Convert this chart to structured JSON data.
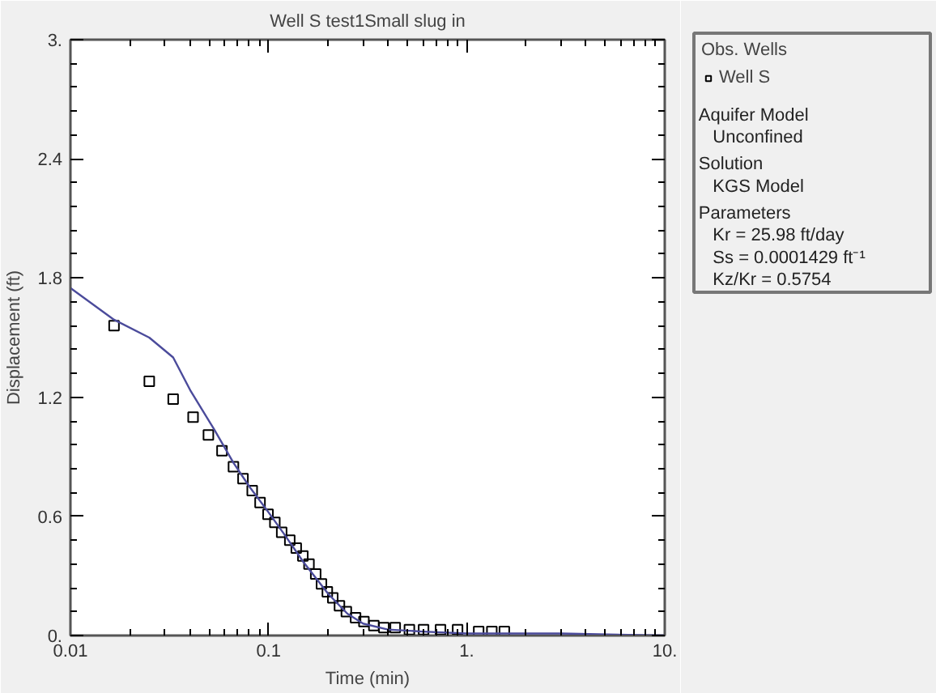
{
  "chart_data": {
    "type": "scatter",
    "title": "Well S test1Small slug in",
    "xlabel": "Time (min)",
    "ylabel": "Displacement (ft)",
    "log": "x",
    "xlim": [
      0.01,
      10
    ],
    "ylim": [
      0,
      3
    ],
    "xticks": [
      0.01,
      0.1,
      {
        "value": 1,
        "label": "1."
      },
      {
        "value": 10,
        "label": "10."
      }
    ],
    "yticks": [
      {
        "value": 0,
        "label": "0."
      },
      0.6,
      1.2,
      1.8,
      2.4,
      {
        "value": 3,
        "label": "3."
      }
    ],
    "grid": false,
    "legend": "right",
    "legend_title": "Obs. Wells",
    "annotations": [
      "Aquifer Model",
      "Unconfined",
      "Solution",
      "KGS Model",
      "Parameters",
      "Kr    = 25.98 ft/day",
      "Ss    = 0.0001429 ft⁻¹",
      "Kz/Kr = 0.5754"
    ],
    "series": [
      {
        "name": "Well S",
        "marker": "square",
        "color": "#000000",
        "x": [
          0.0166,
          0.025,
          0.033,
          0.0416,
          0.0497,
          0.0582,
          0.0665,
          0.0743,
          0.0827,
          0.0906,
          0.0994,
          0.1076,
          0.1165,
          0.128,
          0.138,
          0.149,
          0.16,
          0.173,
          0.185,
          0.198,
          0.211,
          0.228,
          0.247,
          0.275,
          0.303,
          0.34,
          0.382,
          0.436,
          0.514,
          0.606,
          0.738,
          0.9,
          1.15,
          1.34,
          1.55
        ],
        "values": [
          1.56,
          1.28,
          1.19,
          1.1,
          1.01,
          0.93,
          0.85,
          0.79,
          0.73,
          0.67,
          0.61,
          0.57,
          0.52,
          0.48,
          0.44,
          0.4,
          0.36,
          0.31,
          0.26,
          0.22,
          0.19,
          0.15,
          0.12,
          0.09,
          0.07,
          0.05,
          0.04,
          0.04,
          0.03,
          0.03,
          0.03,
          0.03,
          0.02,
          0.02,
          0.02
        ]
      },
      {
        "type": "line",
        "marker": "none",
        "color": "#4b4b9b",
        "line_style": "solid",
        "x": [
          0.01,
          0.0166,
          0.025,
          0.033,
          0.0405,
          0.053,
          0.0665,
          0.08,
          0.1,
          0.12,
          0.15,
          0.2,
          0.25,
          0.3,
          0.4,
          0.6,
          1,
          3,
          10
        ],
        "values": [
          1.75,
          1.59,
          1.5,
          1.4,
          1.23,
          1.04,
          0.87,
          0.75,
          0.62,
          0.51,
          0.37,
          0.21,
          0.11,
          0.06,
          0.03,
          0.02,
          0.01,
          0.01,
          0.0
        ]
      }
    ]
  }
}
